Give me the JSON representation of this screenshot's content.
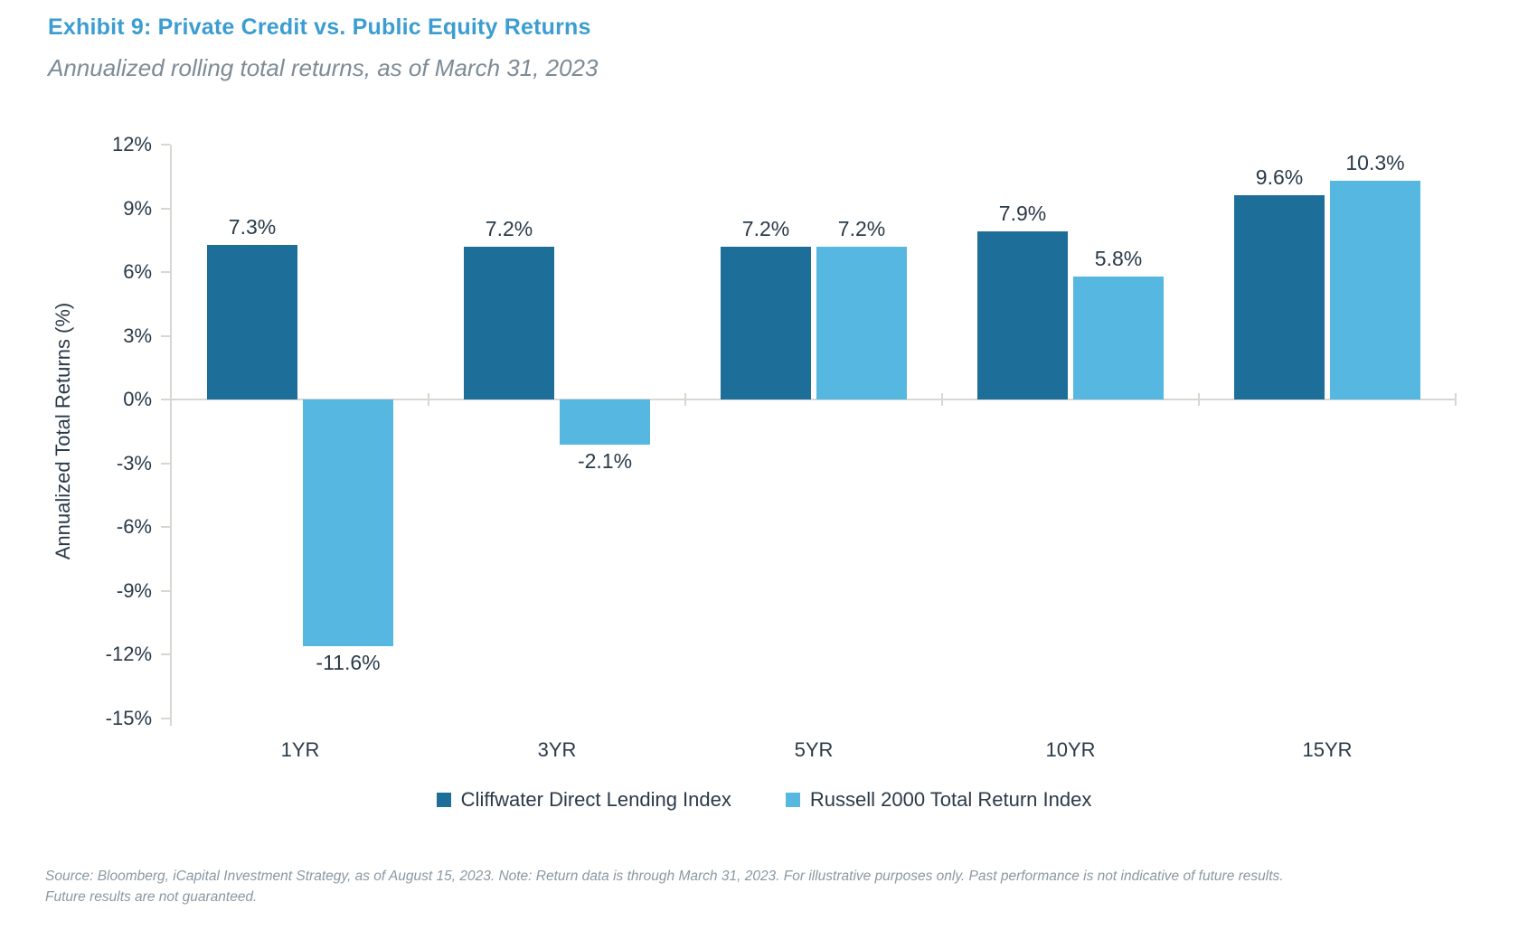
{
  "header": {
    "title": "Exhibit 9: Private Credit vs. Public Equity Returns",
    "subtitle": "Annualized rolling total returns, as of March 31, 2023"
  },
  "colors": {
    "title_blue": "#3b9dd2",
    "dark_series": "#1d6f99",
    "light_series": "#56b7e0",
    "axis_gray": "#d9d7d2",
    "text_navy": "#2b3a48",
    "subtitle_gray": "#7d8b96",
    "footer_gray": "#8a98a2"
  },
  "chart_data": {
    "type": "bar",
    "categories": [
      "1YR",
      "3YR",
      "5YR",
      "10YR",
      "15YR"
    ],
    "series": [
      {
        "name": "Cliffwater Direct Lending Index",
        "color": "#1d6f99",
        "values": [
          7.3,
          7.2,
          7.2,
          7.9,
          9.6
        ],
        "labels": [
          "7.3%",
          "7.2%",
          "7.2%",
          "7.9%",
          "9.6%"
        ]
      },
      {
        "name": "Russell 2000 Total Return Index",
        "color": "#56b7e0",
        "values": [
          -11.6,
          -2.1,
          7.2,
          5.8,
          10.3
        ],
        "labels": [
          "-11.6%",
          "-2.1%",
          "7.2%",
          "5.8%",
          "10.3%"
        ]
      }
    ],
    "title": "Exhibit 9: Private Credit vs. Public Equity Returns",
    "xlabel": "",
    "ylabel": "Annualized Total Returns (%)",
    "ylim": [
      -15,
      12
    ],
    "ytick_values": [
      12,
      9,
      6,
      3,
      0,
      -3,
      -6,
      -9,
      -12,
      -15
    ],
    "ytick_labels": [
      "12%",
      "9%",
      "6%",
      "3%",
      "0%",
      "-3%",
      "-6%",
      "-9%",
      "-12%",
      "-15%"
    ],
    "grid": false,
    "legend_position": "bottom"
  },
  "footer": {
    "line1": "Source: Bloomberg, iCapital Investment Strategy, as of August 15, 2023. Note: Return data is through March 31, 2023. For illustrative purposes only. Past performance is not indicative of future results.",
    "line2": "Future results are not guaranteed."
  }
}
